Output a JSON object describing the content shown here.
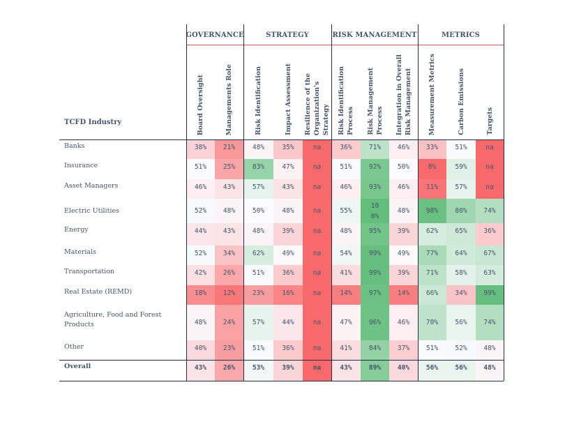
{
  "table": {
    "corner_label": "TCFD Industry",
    "groups": [
      {
        "label": "GOVERNANCE",
        "span": 2
      },
      {
        "label": "STRATEGY",
        "span": 3
      },
      {
        "label": "RISK MANAGEMENT",
        "span": 3
      },
      {
        "label": "METRICS",
        "span": 3
      }
    ],
    "columns": [
      {
        "lines": [
          "Board Oversight"
        ]
      },
      {
        "lines": [
          "Managements Role"
        ]
      },
      {
        "lines": [
          "Risk Identification"
        ]
      },
      {
        "lines": [
          "Impact Assessment"
        ]
      },
      {
        "lines": [
          "Resilience of the",
          "Organization's",
          "Strategy"
        ]
      },
      {
        "lines": [
          "Risk Identification",
          "Process"
        ]
      },
      {
        "lines": [
          "Risk Management",
          "Process"
        ]
      },
      {
        "lines": [
          "Integration in Overall",
          "Risk Management"
        ]
      },
      {
        "lines": [
          "Measurement Metrics"
        ]
      },
      {
        "lines": [
          "Carbon Emissions"
        ]
      },
      {
        "lines": [
          "Targets"
        ]
      }
    ],
    "rows": [
      {
        "label": "Banks",
        "values": [
          "38%",
          "21%",
          "48%",
          "35%",
          "na",
          "36%",
          "71%",
          "46%",
          "33%",
          "51%",
          "na"
        ]
      },
      {
        "label": "Insurance",
        "values": [
          "51%",
          "25%",
          "83%",
          "47%",
          "na",
          "51%",
          "92%",
          "50%",
          "8%",
          "59%",
          "na"
        ]
      },
      {
        "label": "Asset Managers",
        "values": [
          "46%",
          "43%",
          "57%",
          "43%",
          "na",
          "46%",
          "93%",
          "46%",
          "11%",
          "57%",
          "na"
        ]
      },
      {
        "label": "Electric Utilities",
        "values": [
          "52%",
          "48%",
          "50%",
          "48%",
          "na",
          "55%",
          "100%",
          "48%",
          "98%",
          "80%",
          "74%"
        ]
      },
      {
        "label": "Energy",
        "values": [
          "44%",
          "43%",
          "48%",
          "39%",
          "na",
          "48%",
          "95%",
          "39%",
          "62%",
          "65%",
          "36%"
        ]
      },
      {
        "label": "Materials",
        "values": [
          "52%",
          "34%",
          "62%",
          "49%",
          "na",
          "54%",
          "99%",
          "49%",
          "77%",
          "64%",
          "67%"
        ]
      },
      {
        "label": "Transportation",
        "values": [
          "42%",
          "26%",
          "51%",
          "36%",
          "na",
          "41%",
          "99%",
          "39%",
          "71%",
          "58%",
          "63%"
        ]
      },
      {
        "label": "Real Estate (REMD)",
        "values": [
          "18%",
          "12%",
          "23%",
          "16%",
          "na",
          "14%",
          "97%",
          "14%",
          "66%",
          "34%",
          "99%"
        ]
      },
      {
        "label": "Agriculture, Food and Forest Products",
        "values": [
          "48%",
          "24%",
          "57%",
          "44%",
          "na",
          "47%",
          "96%",
          "46%",
          "70%",
          "56%",
          "74%"
        ]
      },
      {
        "label": "Other",
        "values": [
          "40%",
          "23%",
          "51%",
          "36%",
          "na",
          "41%",
          "84%",
          "37%",
          "51%",
          "52%",
          "48%"
        ]
      }
    ],
    "overall": {
      "label": "Overall",
      "values": [
        "43%",
        "26%",
        "53%",
        "39%",
        "na",
        "43%",
        "89%",
        "40%",
        "56%",
        "56%",
        "48%"
      ]
    }
  },
  "colors": {
    "text": "#44546a",
    "border": "#1f2e4a",
    "group_rule": "#b85a5a",
    "scale_low": "#f8696b",
    "scale_mid": "#fcfcff",
    "scale_high": "#63be7b",
    "na_fill": "#f8696b"
  }
}
